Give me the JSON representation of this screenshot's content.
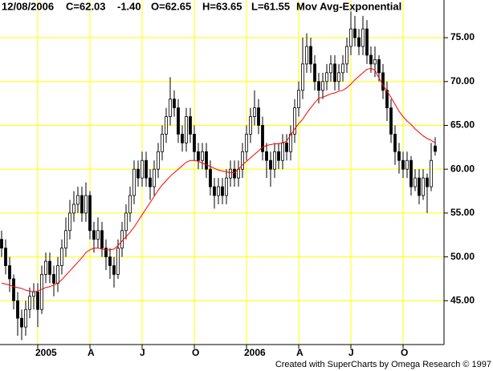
{
  "chart_data": {
    "type": "candlestick",
    "header": {
      "date": "12/08/2006",
      "close": "C=62.03",
      "change": "-1.40",
      "open": "O=62.65",
      "high": "H=63.65",
      "low": "L=61.55",
      "study": "Mov Avg-Exponential"
    },
    "footer": "Created with SuperCharts by Omega Research © 1997",
    "categories": [
      null,
      null,
      null,
      null,
      null,
      null,
      null,
      null,
      null,
      "2005",
      null,
      null,
      null,
      null,
      null,
      null,
      null,
      null,
      null,
      null,
      null,
      null,
      "A",
      null,
      null,
      null,
      null,
      null,
      null,
      null,
      null,
      null,
      null,
      null,
      null,
      "J",
      null,
      null,
      null,
      null,
      null,
      null,
      null,
      null,
      null,
      null,
      null,
      null,
      "O",
      null,
      null,
      null,
      null,
      null,
      null,
      null,
      null,
      null,
      null,
      null,
      null,
      "2006",
      null,
      null,
      null,
      null,
      null,
      null,
      null,
      null,
      null,
      null,
      null,
      null,
      "A",
      null,
      null,
      null,
      null,
      null,
      null,
      null,
      null,
      null,
      null,
      null,
      null,
      "J",
      null,
      null,
      null,
      null,
      null,
      null,
      null,
      null,
      null,
      null,
      null,
      null,
      "O",
      null,
      null,
      null,
      null,
      null,
      null,
      null,
      null
    ],
    "open": [
      52,
      51,
      49,
      47.5,
      45,
      43,
      42,
      44,
      45.5,
      46,
      44,
      48,
      49.5,
      48,
      47,
      49,
      51,
      53,
      55,
      56,
      57,
      55,
      57,
      53,
      52,
      53,
      51,
      50,
      49,
      48,
      51,
      53,
      55,
      57,
      60,
      59,
      61,
      59,
      58,
      60,
      62,
      64,
      66,
      68,
      67,
      64,
      63,
      66,
      64,
      62,
      61,
      62,
      60,
      58,
      57,
      58,
      57,
      59,
      60,
      59,
      60,
      62,
      64,
      66,
      67,
      65,
      62,
      61,
      60,
      62,
      61,
      63,
      62,
      64,
      67,
      69,
      72,
      74,
      72,
      70,
      69,
      70,
      71,
      72,
      70,
      71,
      72,
      74,
      76,
      75,
      74,
      76,
      73,
      72,
      72.5,
      71,
      69,
      67,
      64,
      62,
      61,
      60,
      61,
      58,
      59,
      57,
      59,
      58,
      62.65
    ],
    "high": [
      53,
      52,
      50,
      48,
      46,
      44,
      45,
      46.5,
      47,
      47,
      49,
      50.5,
      50.5,
      49,
      50,
      52,
      54.5,
      56.5,
      57.5,
      58,
      58,
      58.5,
      57.5,
      54,
      54.5,
      54,
      52,
      51,
      50,
      52,
      54,
      56,
      58,
      61,
      61,
      62,
      62,
      60,
      61,
      63,
      65,
      67,
      70.5,
      69,
      68,
      65,
      67,
      67,
      65,
      63,
      63,
      63,
      61,
      59,
      59,
      59,
      60,
      61,
      61,
      61,
      63,
      65,
      67,
      69,
      68,
      66,
      63,
      62,
      63,
      63,
      64,
      64,
      65,
      68,
      70,
      75,
      75.5,
      75,
      73,
      71,
      71,
      72,
      73,
      73,
      72,
      73,
      75,
      78,
      77.5,
      76,
      77.5,
      77,
      74,
      74,
      73,
      72,
      70,
      68,
      65,
      63,
      62,
      62,
      61.5,
      60,
      60,
      60,
      59.5,
      63,
      63.65
    ],
    "low": [
      50,
      48,
      46,
      44,
      41,
      40.5,
      41,
      43,
      44,
      42,
      43.5,
      47,
      47,
      45.5,
      46,
      48,
      50,
      52,
      54,
      55,
      54,
      54,
      52,
      50.5,
      51,
      50,
      48.5,
      47.5,
      46.5,
      47.5,
      50,
      52,
      54,
      56,
      58,
      58,
      58,
      56.5,
      57,
      59,
      61,
      63,
      65,
      66,
      63,
      62,
      62,
      63,
      61,
      60,
      60,
      59,
      57,
      55.5,
      56,
      56,
      56,
      58,
      58,
      58,
      59,
      61,
      63,
      65,
      64,
      61,
      59,
      58,
      59,
      60,
      60,
      61,
      61,
      63,
      66,
      68,
      71,
      71,
      69,
      67.5,
      68,
      69,
      70,
      69,
      69,
      70,
      71,
      73,
      74,
      73,
      73,
      72,
      71,
      70.5,
      70,
      68,
      65.5,
      63,
      60.5,
      59.5,
      59,
      59,
      57,
      57.5,
      56,
      56.5,
      55,
      57.5,
      61.55
    ],
    "close": [
      51,
      49,
      47.5,
      45,
      43,
      42,
      44,
      45.5,
      46,
      44,
      48,
      49.5,
      48,
      47,
      49,
      51,
      53,
      55,
      56,
      57,
      55,
      57,
      53,
      52,
      53,
      51,
      50,
      49,
      48,
      51,
      53,
      55,
      57,
      60,
      59,
      61,
      59,
      58,
      60,
      62,
      64,
      66,
      68,
      67,
      64,
      63,
      66,
      64,
      62,
      61,
      62,
      60,
      58,
      57,
      58,
      57,
      59,
      60,
      59,
      60,
      62,
      64,
      66,
      67,
      65,
      62,
      61,
      60,
      62,
      61,
      63,
      62,
      64,
      67,
      69,
      72,
      74,
      72,
      70,
      69,
      70,
      71,
      72,
      70,
      71,
      72,
      74,
      76,
      75,
      74,
      76,
      73,
      72,
      72.5,
      71,
      69,
      67,
      64,
      62,
      61,
      60,
      61,
      58,
      59,
      57,
      59,
      58,
      61,
      62.03
    ],
    "ema": {
      "color": "#ff0000",
      "values": [
        47,
        46.9,
        46.8,
        46.6,
        46.5,
        46.4,
        46.2,
        46.1,
        46,
        46.1,
        46.3,
        46.5,
        46.6,
        46.8,
        47,
        47.4,
        47.9,
        48.4,
        48.9,
        49.4,
        49.9,
        50.5,
        50.8,
        51,
        51,
        50.9,
        50.8,
        50.8,
        50.9,
        51.3,
        51.8,
        52.3,
        52.8,
        53.4,
        54.1,
        54.8,
        55.5,
        56.2,
        56.9,
        57.6,
        58.2,
        58.7,
        59.2,
        59.6,
        60,
        60.4,
        60.8,
        61,
        61,
        60.9,
        60.7,
        60.5,
        60.3,
        60.1,
        59.9,
        59.8,
        59.7,
        59.6,
        59.6,
        60,
        60.5,
        60.9,
        61.3,
        61.7,
        62.1,
        62.5,
        62.7,
        62.8,
        62.9,
        62.9,
        63,
        63.2,
        63.9,
        64.6,
        65.2,
        65.7,
        66.4,
        67,
        67.6,
        68.1,
        68.2,
        68.4,
        68.6,
        68.7,
        68.9,
        69,
        69.3,
        69.7,
        70.2,
        70.6,
        71,
        71.4,
        71.5,
        71.3,
        70.4,
        69.6,
        68.9,
        68.2,
        67.4,
        66.6,
        66,
        65.5,
        65.1,
        64.6,
        64.2,
        63.8,
        63.5,
        63.3,
        63
      ]
    },
    "up_color": "#ffffff",
    "down_color": "#000000",
    "candle_outline": "#000000",
    "ylim": [
      40,
      79.3
    ],
    "yticks": [
      {
        "value": 45,
        "label": "45.00"
      },
      {
        "value": 50,
        "label": "50.00"
      },
      {
        "value": 55,
        "label": "55.00"
      },
      {
        "value": 60,
        "label": "60.00"
      },
      {
        "value": 65,
        "label": "65.00"
      },
      {
        "value": 70,
        "label": "70.00"
      },
      {
        "value": 75,
        "label": "75.00"
      }
    ],
    "grid": true,
    "grid_color": "#ffff00",
    "change_color": "#ff0000"
  }
}
